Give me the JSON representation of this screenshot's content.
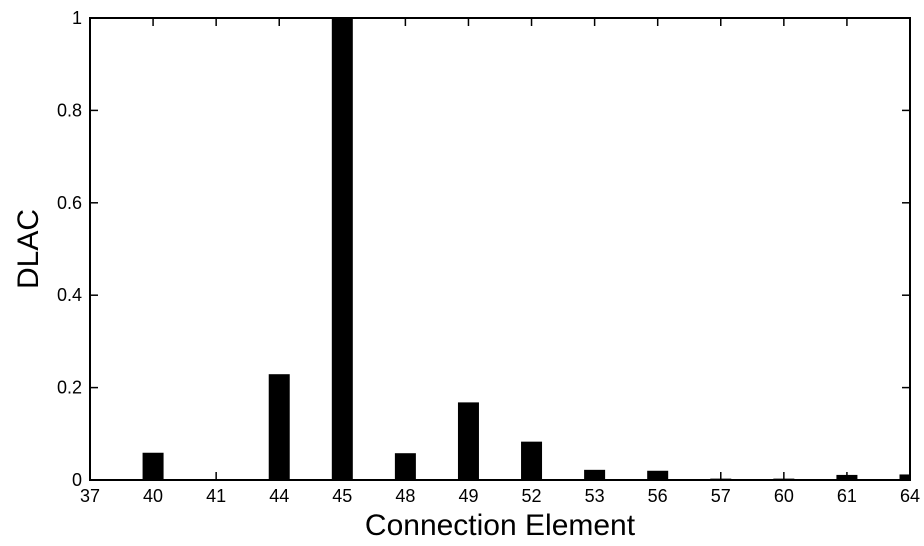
{
  "chart_data": {
    "type": "bar",
    "xlabel": "Connection Element",
    "ylabel": "DLAC",
    "categories": [
      "37",
      "40",
      "41",
      "44",
      "45",
      "48",
      "49",
      "52",
      "53",
      "56",
      "57",
      "60",
      "61",
      "64"
    ],
    "values": [
      0,
      0.059,
      0.002,
      0.229,
      1.0,
      0.058,
      0.168,
      0.083,
      0.022,
      0.02,
      0.003,
      0.003,
      0.011,
      0.012
    ],
    "ylim": [
      0,
      1
    ],
    "yticks": [
      0,
      0.2,
      0.4,
      0.6,
      0.8,
      1
    ],
    "ytick_labels": [
      "0",
      "0.2",
      "0.4",
      "0.6",
      "0.8",
      "1"
    ],
    "bar_color": "#000000",
    "grid": false,
    "legend": "none"
  }
}
